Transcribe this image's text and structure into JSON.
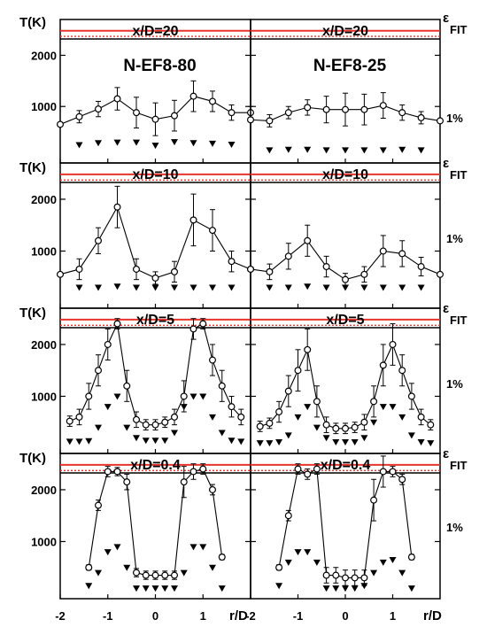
{
  "figure": {
    "left_axis_label": "T(K)",
    "right_axis_symbol": "ε",
    "right_axis_subscript": "FIT",
    "right_axis_tick": "1%",
    "x_axis_label": "r/D",
    "colors": {
      "reference_line": "#e8342a",
      "frame": "#000000",
      "marker_fill": "#ffffff"
    }
  },
  "chart_data": [
    {
      "type": "line",
      "title": "x/D=20",
      "run_label": "N-EF8-80",
      "xlabel": "r/D",
      "ylabel": "T(K)",
      "xlim": [
        -2,
        2
      ],
      "ylim": [
        0,
        2700
      ],
      "y_ticks": [
        1000,
        2000
      ],
      "x_ticks": [
        -2,
        -1,
        0,
        1
      ],
      "reference_lines": {
        "solid": 2480,
        "dotted": 2370
      },
      "series": [
        {
          "marker": "open-circle",
          "x": [
            -2.0,
            -1.6,
            -1.2,
            -0.8,
            -0.4,
            0.0,
            0.4,
            0.8,
            1.2,
            1.6,
            2.0
          ],
          "y": [
            650,
            800,
            950,
            1150,
            880,
            750,
            820,
            1200,
            1100,
            880,
            880
          ],
          "err": [
            0,
            120,
            150,
            220,
            300,
            320,
            300,
            300,
            200,
            150,
            120
          ]
        }
      ],
      "epsilon": {
        "marker": "filled-triangle",
        "x": [
          -1.6,
          -1.2,
          -0.8,
          -0.4,
          0.0,
          0.4,
          0.8,
          1.2,
          1.6
        ],
        "y": [
          250,
          290,
          300,
          300,
          240,
          310,
          290,
          280,
          260
        ]
      }
    },
    {
      "type": "line",
      "title": "x/D=20",
      "run_label": "N-EF8-25",
      "xlabel": "r/D",
      "ylabel": "T(K)",
      "xlim": [
        -2,
        2
      ],
      "ylim": [
        0,
        2700
      ],
      "y_ticks": [
        1000,
        2000
      ],
      "x_ticks": [
        -2,
        -1,
        0,
        1
      ],
      "reference_lines": {
        "solid": 2480,
        "dotted": 2370
      },
      "series": [
        {
          "marker": "open-circle",
          "x": [
            -2.0,
            -1.6,
            -1.2,
            -0.8,
            -0.4,
            0.0,
            0.4,
            0.8,
            1.2,
            1.6,
            2.0
          ],
          "y": [
            740,
            720,
            880,
            980,
            940,
            940,
            940,
            1020,
            880,
            780,
            720
          ],
          "err": [
            0,
            120,
            120,
            150,
            260,
            320,
            300,
            250,
            150,
            120,
            0
          ]
        }
      ],
      "epsilon": {
        "marker": "filled-triangle",
        "x": [
          -1.6,
          -1.2,
          -0.8,
          -0.4,
          0.0,
          0.4,
          0.8,
          1.2,
          1.6
        ],
        "y": [
          150,
          160,
          160,
          150,
          150,
          150,
          150,
          160,
          150
        ]
      }
    },
    {
      "type": "line",
      "title": "x/D=10",
      "xlabel": "r/D",
      "ylabel": "T(K)",
      "xlim": [
        -2,
        2
      ],
      "ylim": [
        0,
        2700
      ],
      "y_ticks": [
        1000,
        2000
      ],
      "x_ticks": [
        -2,
        -1,
        0,
        1
      ],
      "reference_lines": {
        "solid": 2480,
        "dotted": 2370
      },
      "series": [
        {
          "marker": "open-circle",
          "x": [
            -2.0,
            -1.6,
            -1.2,
            -0.8,
            -0.4,
            0.0,
            0.4,
            0.8,
            1.2,
            1.6,
            2.0
          ],
          "y": [
            550,
            650,
            1200,
            1850,
            650,
            480,
            600,
            1600,
            1400,
            800,
            650
          ],
          "err": [
            0,
            200,
            250,
            400,
            200,
            120,
            200,
            500,
            400,
            200,
            0
          ]
        }
      ],
      "epsilon": {
        "marker": "filled-triangle",
        "x": [
          -1.6,
          -1.2,
          -0.8,
          -0.4,
          0.0,
          0.4,
          0.8,
          1.2,
          1.6
        ],
        "y": [
          300,
          300,
          320,
          300,
          300,
          300,
          300,
          300,
          300
        ]
      }
    },
    {
      "type": "line",
      "title": "x/D=10",
      "xlabel": "r/D",
      "ylabel": "T(K)",
      "xlim": [
        -2,
        2
      ],
      "ylim": [
        0,
        2700
      ],
      "y_ticks": [
        1000,
        2000
      ],
      "x_ticks": [
        -2,
        -1,
        0,
        1
      ],
      "reference_lines": {
        "solid": 2480,
        "dotted": 2370
      },
      "series": [
        {
          "marker": "open-circle",
          "x": [
            -2.0,
            -1.6,
            -1.2,
            -0.8,
            -0.4,
            0.0,
            0.4,
            0.8,
            1.2,
            1.6,
            2.0
          ],
          "y": [
            650,
            600,
            900,
            1200,
            700,
            450,
            550,
            1000,
            950,
            700,
            550
          ],
          "err": [
            0,
            150,
            250,
            300,
            200,
            120,
            150,
            300,
            250,
            180,
            0
          ]
        }
      ],
      "epsilon": {
        "marker": "filled-triangle",
        "x": [
          -1.6,
          -1.2,
          -0.8,
          -0.4,
          0.0,
          0.4,
          0.8,
          1.2,
          1.6
        ],
        "y": [
          300,
          300,
          320,
          300,
          300,
          300,
          300,
          300,
          300
        ]
      }
    },
    {
      "type": "line",
      "title": "x/D=5",
      "xlabel": "r/D",
      "ylabel": "T(K)",
      "xlim": [
        -2,
        2
      ],
      "ylim": [
        0,
        2700
      ],
      "y_ticks": [
        1000,
        2000
      ],
      "x_ticks": [
        -2,
        -1,
        0,
        1
      ],
      "reference_lines": {
        "solid": 2480,
        "dotted": 2370
      },
      "series": [
        {
          "marker": "open-circle",
          "x": [
            -1.8,
            -1.6,
            -1.4,
            -1.2,
            -1.0,
            -0.8,
            -0.6,
            -0.4,
            -0.2,
            0.0,
            0.2,
            0.4,
            0.6,
            0.8,
            1.0,
            1.2,
            1.4,
            1.6,
            1.8
          ],
          "y": [
            520,
            600,
            1000,
            1500,
            2000,
            2400,
            1200,
            550,
            450,
            450,
            500,
            600,
            1000,
            2300,
            2400,
            1700,
            1200,
            800,
            600
          ],
          "err": [
            100,
            150,
            250,
            300,
            300,
            100,
            300,
            150,
            100,
            100,
            100,
            150,
            300,
            200,
            100,
            300,
            300,
            200,
            150
          ]
        }
      ],
      "epsilon": {
        "marker": "filled-triangle",
        "x": [
          -1.8,
          -1.6,
          -1.4,
          -1.2,
          -1.0,
          -0.8,
          -0.6,
          -0.4,
          -0.2,
          0.0,
          0.2,
          0.4,
          0.6,
          0.8,
          1.0,
          1.2,
          1.4,
          1.6,
          1.8
        ],
        "y": [
          130,
          130,
          140,
          400,
          800,
          1000,
          400,
          200,
          150,
          150,
          150,
          300,
          800,
          1000,
          1000,
          600,
          300,
          150,
          130
        ]
      }
    },
    {
      "type": "line",
      "title": "x/D=5",
      "xlabel": "r/D",
      "ylabel": "T(K)",
      "xlim": [
        -2,
        2
      ],
      "ylim": [
        0,
        2700
      ],
      "y_ticks": [
        1000,
        2000
      ],
      "x_ticks": [
        -2,
        -1,
        0,
        1
      ],
      "reference_lines": {
        "solid": 2480,
        "dotted": 2370
      },
      "series": [
        {
          "marker": "open-circle",
          "x": [
            -1.8,
            -1.6,
            -1.4,
            -1.2,
            -1.0,
            -0.8,
            -0.6,
            -0.4,
            -0.2,
            0.0,
            0.2,
            0.4,
            0.6,
            0.8,
            1.0,
            1.2,
            1.4,
            1.6,
            1.8
          ],
          "y": [
            420,
            480,
            700,
            1100,
            1500,
            1900,
            900,
            450,
            380,
            380,
            400,
            500,
            900,
            1600,
            2000,
            1500,
            1000,
            600,
            450
          ],
          "err": [
            100,
            100,
            200,
            300,
            400,
            400,
            300,
            150,
            100,
            100,
            100,
            150,
            300,
            400,
            400,
            300,
            250,
            150,
            100
          ]
        }
      ],
      "epsilon": {
        "marker": "filled-triangle",
        "x": [
          -1.8,
          -1.6,
          -1.4,
          -1.2,
          -1.0,
          -0.8,
          -0.6,
          -0.4,
          -0.2,
          0.0,
          0.2,
          0.4,
          0.6,
          0.8,
          1.0,
          1.2,
          1.4,
          1.6,
          1.8
        ],
        "y": [
          100,
          100,
          120,
          250,
          600,
          800,
          400,
          200,
          120,
          120,
          120,
          200,
          500,
          800,
          800,
          600,
          250,
          120,
          100
        ]
      }
    },
    {
      "type": "line",
      "title": "x/D=0.4",
      "xlabel": "r/D",
      "ylabel": "T(K)",
      "xlim": [
        -2,
        2
      ],
      "ylim": [
        0,
        2700
      ],
      "y_ticks": [
        1000,
        2000
      ],
      "x_ticks": [
        -2,
        -1,
        0,
        1
      ],
      "reference_lines": {
        "solid": 2480,
        "dotted": 2370
      },
      "series": [
        {
          "marker": "open-circle",
          "x": [
            -1.4,
            -1.2,
            -1.0,
            -0.8,
            -0.6,
            -0.4,
            -0.2,
            0.0,
            0.2,
            0.4,
            0.6,
            0.8,
            1.0,
            1.2,
            1.4
          ],
          "y": [
            500,
            1700,
            2350,
            2350,
            2150,
            400,
            350,
            350,
            350,
            350,
            2150,
            2350,
            2400,
            2000,
            700
          ],
          "err": [
            50,
            100,
            100,
            80,
            150,
            80,
            80,
            80,
            80,
            80,
            300,
            150,
            100,
            100,
            50
          ]
        }
      ],
      "epsilon": {
        "marker": "filled-triangle",
        "x": [
          -1.4,
          -1.2,
          -1.0,
          -0.8,
          -0.6,
          -0.4,
          -0.2,
          0.0,
          0.2,
          0.4,
          0.6,
          0.8,
          1.0,
          1.2,
          1.4
        ],
        "y": [
          150,
          400,
          800,
          900,
          500,
          100,
          100,
          100,
          100,
          100,
          400,
          900,
          900,
          500,
          100
        ]
      }
    },
    {
      "type": "line",
      "title": "x/D=0.4",
      "xlabel": "r/D",
      "ylabel": "T(K)",
      "xlim": [
        -2,
        2
      ],
      "ylim": [
        0,
        2700
      ],
      "y_ticks": [
        1000,
        2000
      ],
      "x_ticks": [
        -2,
        -1,
        0,
        1
      ],
      "reference_lines": {
        "solid": 2480,
        "dotted": 2370
      },
      "series": [
        {
          "marker": "open-circle",
          "x": [
            -1.4,
            -1.2,
            -1.0,
            -0.8,
            -0.6,
            -0.4,
            -0.2,
            0.0,
            0.2,
            0.4,
            0.6,
            0.8,
            1.0,
            1.2,
            1.4
          ],
          "y": [
            500,
            1500,
            2400,
            2300,
            2400,
            350,
            350,
            300,
            300,
            300,
            1800,
            2350,
            2350,
            2200,
            700
          ],
          "err": [
            50,
            100,
            100,
            100,
            100,
            150,
            150,
            150,
            150,
            150,
            400,
            300,
            100,
            100,
            50
          ]
        }
      ],
      "epsilon": {
        "marker": "filled-triangle",
        "x": [
          -1.4,
          -1.2,
          -1.0,
          -0.8,
          -0.6,
          -0.4,
          -0.2,
          0.0,
          0.2,
          0.4,
          0.6,
          0.8,
          1.0,
          1.2,
          1.4
        ],
        "y": [
          150,
          600,
          800,
          800,
          600,
          100,
          100,
          100,
          100,
          150,
          400,
          600,
          650,
          400,
          100
        ]
      }
    }
  ]
}
